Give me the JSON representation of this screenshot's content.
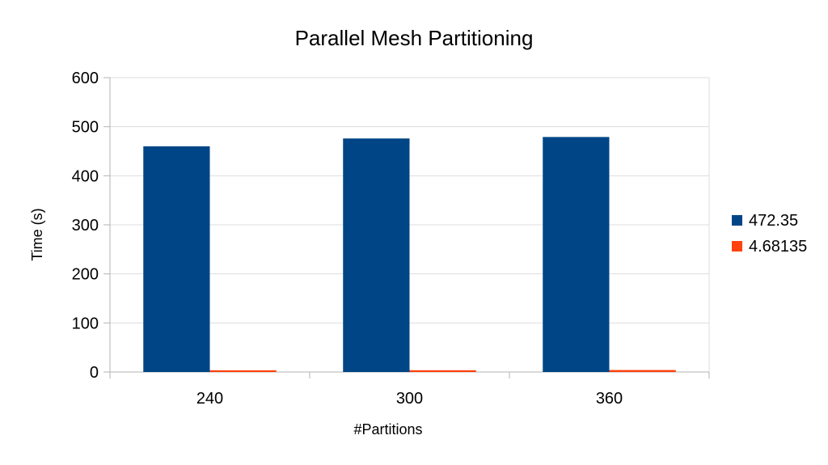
{
  "chart_data": {
    "type": "bar",
    "title": "Parallel Mesh Partitioning",
    "xlabel": "#Partitions",
    "ylabel": "Time (s)",
    "categories": [
      "240",
      "300",
      "360"
    ],
    "series": [
      {
        "name": "472.35",
        "color": "#004586",
        "values": [
          460,
          476,
          479
        ]
      },
      {
        "name": "4.68135",
        "color": "#ff420e",
        "values": [
          3.5,
          3.6,
          4.0
        ]
      }
    ],
    "ylim": [
      0,
      600
    ],
    "yticks": [
      0,
      100,
      200,
      300,
      400,
      500,
      600
    ],
    "grid": true,
    "legend_position": "right",
    "grid_color": "#dddddd",
    "axis_color": "#b3b3b3"
  }
}
